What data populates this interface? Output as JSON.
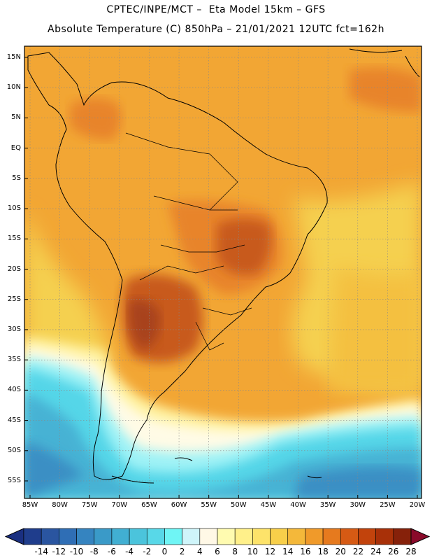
{
  "title": {
    "line1": "CPTEC/INPE/MCT –  Eta Model 15km – GFS",
    "line2": "Absolute Temperature (C) 850hPa – 21/01/2021 12UTC fct=162h"
  },
  "axes": {
    "lat_labels": [
      "15N",
      "10N",
      "5N",
      "EQ",
      "5S",
      "10S",
      "15S",
      "20S",
      "25S",
      "30S",
      "35S",
      "40S",
      "45S",
      "50S",
      "55S"
    ],
    "lon_labels": [
      "85W",
      "80W",
      "75W",
      "70W",
      "65W",
      "60W",
      "55W",
      "50W",
      "45W",
      "40W",
      "35W",
      "30W",
      "25W",
      "20W"
    ],
    "lat_values": [
      15,
      10,
      5,
      0,
      -5,
      -10,
      -15,
      -20,
      -25,
      -30,
      -35,
      -40,
      -45,
      -50,
      -55
    ],
    "lon_values": [
      -85,
      -80,
      -75,
      -70,
      -65,
      -60,
      -55,
      -50,
      -45,
      -40,
      -35,
      -30,
      -25,
      -20
    ]
  },
  "colorbar": {
    "labels": [
      "-14",
      "-12",
      "-10",
      "-8",
      "-6",
      "-4",
      "-2",
      "0",
      "2",
      "4",
      "6",
      "8",
      "10",
      "12",
      "14",
      "16",
      "18",
      "20",
      "22",
      "24",
      "26",
      "28"
    ],
    "colors": [
      "#1f3d8c",
      "#2a55a0",
      "#2f6eb5",
      "#3584c0",
      "#3a9ac8",
      "#41afd2",
      "#4bc4dc",
      "#58d8e8",
      "#6ff5f5",
      "#cff5fa",
      "#fff8e6",
      "#fffbb0",
      "#fff08a",
      "#fde36a",
      "#f8cf4a",
      "#f4b83a",
      "#f09a2a",
      "#e67a1e",
      "#d65a14",
      "#c2430c",
      "#a83008",
      "#86210a"
    ],
    "color_under": "#1a2f80",
    "color_over": "#8a0a2a"
  },
  "map_colors": {
    "orange_warm": "#f2a634",
    "orange_hot": "#e8842a",
    "brown_hot": "#c85a1a",
    "dark_hot": "#a8421a",
    "yellow": "#f5d050",
    "light_yellow": "#fff2a0",
    "cream": "#fffbe6",
    "cyan_light": "#9ff2f6",
    "cyan": "#54d6e8",
    "blue_mid": "#46b2d4",
    "blue": "#3a8fc4"
  }
}
